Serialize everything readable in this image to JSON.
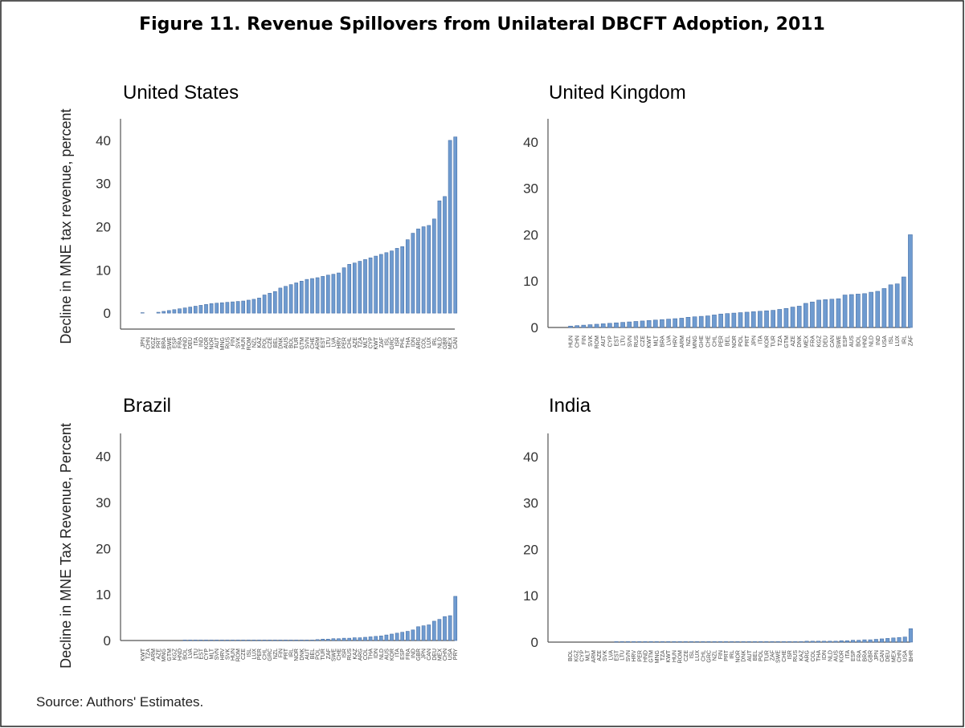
{
  "title": "Figure 11. Revenue Spillovers from Unilateral DBCFT Adoption, 2011",
  "source": "Source: Authors' Estimates.",
  "chart_data": [
    {
      "type": "bar",
      "title": "United States",
      "y_label": "Decline in MNE tax revenue, percent",
      "color": "#6f9bd0",
      "categories": [
        "JPN",
        "CHN",
        "KGZ",
        "PRT",
        "BRA",
        "SWE",
        "ESP",
        "FRA",
        "HND",
        "DEU",
        "ITA",
        "IND",
        "KOR",
        "NOR",
        "AUT",
        "MNG",
        "RUS",
        "FIN",
        "SVK",
        "HUN",
        "ROM",
        "NZL",
        "KAZ",
        "POL",
        "CZE",
        "BEL",
        "DNK",
        "AUS",
        "BOL",
        "TUR",
        "GTM",
        "SVN",
        "CHE",
        "ARM",
        "EST",
        "LTU",
        "LVA",
        "HRV",
        "PER",
        "CHL",
        "AZE",
        "TZA",
        "MLT",
        "CYP",
        "KWT",
        "ZAF",
        "ISL",
        "GRC",
        "ISR",
        "PHL",
        "THA",
        "IDN",
        "ARG",
        "COL",
        "LUX",
        "IRL",
        "NLD",
        "GBR",
        "MEX",
        "CAN"
      ],
      "values": [
        0.1,
        0,
        0,
        0.2,
        0.4,
        0.6,
        0.8,
        1.0,
        1.2,
        1.4,
        1.6,
        1.8,
        2.0,
        2.2,
        2.3,
        2.4,
        2.5,
        2.6,
        2.7,
        2.8,
        3.0,
        3.2,
        3.5,
        4.2,
        4.6,
        5.0,
        5.8,
        6.2,
        6.6,
        7.0,
        7.4,
        7.8,
        8.0,
        8.2,
        8.5,
        8.8,
        9.0,
        9.3,
        10.5,
        11.3,
        11.6,
        12.0,
        12.4,
        12.8,
        13.2,
        13.6,
        14.0,
        14.4,
        15.0,
        15.4,
        17.0,
        18.5,
        19.5,
        20.0,
        20.3,
        21.8,
        26.0,
        27.0,
        40.0,
        40.8
      ],
      "ylim": [
        -3.7,
        45
      ],
      "yticks": [
        0,
        10,
        20,
        30,
        40
      ]
    },
    {
      "type": "bar",
      "title": "United Kingdom",
      "color": "#6f9bd0",
      "categories": [
        "HUN",
        "CHN",
        "FIN",
        "SVK",
        "ROM",
        "AUT",
        "CYP",
        "EST",
        "LTU",
        "SVN",
        "RUS",
        "CZE",
        "KWT",
        "MLT",
        "BRA",
        "LVA",
        "HRV",
        "ARM",
        "NZL",
        "MNG",
        "GHE",
        "CHE",
        "CHL",
        "PER",
        "BEL",
        "NOR",
        "POL",
        "PRT",
        "JPN",
        "ITA",
        "KOR",
        "TUR",
        "TZA",
        "GTM",
        "AZE",
        "DNK",
        "MEX",
        "FRA",
        "KGZ",
        "DEU",
        "CAN",
        "SWE",
        "ESP",
        "AUS",
        "BOL",
        "HND",
        "NLD",
        "IND",
        "USA",
        "ISL",
        "LUX",
        "IRL",
        "ZAF"
      ],
      "values": [
        0.3,
        0.4,
        0.5,
        0.6,
        0.7,
        0.8,
        0.9,
        1.0,
        1.1,
        1.2,
        1.3,
        1.4,
        1.5,
        1.6,
        1.7,
        1.8,
        1.9,
        2.0,
        2.2,
        2.3,
        2.4,
        2.5,
        2.7,
        2.9,
        3.0,
        3.1,
        3.2,
        3.3,
        3.4,
        3.5,
        3.6,
        3.7,
        3.9,
        4.1,
        4.4,
        4.6,
        5.2,
        5.5,
        5.9,
        6.0,
        6.1,
        6.2,
        7.0,
        7.1,
        7.2,
        7.3,
        7.6,
        7.8,
        8.4,
        9.2,
        9.4,
        10.9,
        20.0
      ],
      "ylim": [
        0,
        45
      ],
      "yticks": [
        0,
        10,
        20,
        30,
        40
      ]
    },
    {
      "type": "bar",
      "title": "Brazil",
      "y_label": "Decline in MNE Tax Revenue, Percent",
      "color": "#6f9bd0",
      "categories": [
        "KWT",
        "TZA",
        "ARM",
        "AZE",
        "MNG",
        "GTM",
        "KGZ",
        "HND",
        "BOL",
        "LVA",
        "LTU",
        "EST",
        "CYP",
        "MLT",
        "SVN",
        "HRV",
        "SVK",
        "HUN",
        "ROM",
        "CZE",
        "ISL",
        "LUX",
        "PER",
        "CHL",
        "GRC",
        "NZL",
        "FIN",
        "PRT",
        "IRL",
        "NOR",
        "DNK",
        "AUT",
        "BEL",
        "POL",
        "TUR",
        "ZAF",
        "SWE",
        "CHE",
        "ISR",
        "RUS",
        "KAZ",
        "ARG",
        "COL",
        "THA",
        "IDN",
        "NLD",
        "AUS",
        "KOR",
        "ITA",
        "ESP",
        "FRA",
        "IND",
        "GBR",
        "JPN",
        "CAN",
        "DEU",
        "MEX",
        "CHN",
        "USA",
        "PRY"
      ],
      "values": [
        0,
        0,
        0,
        0,
        0,
        0,
        0,
        0,
        0.1,
        0.1,
        0.1,
        0.1,
        0.1,
        0.1,
        0.1,
        0.1,
        0.1,
        0.1,
        0.1,
        0.1,
        0.1,
        0.1,
        0.1,
        0.1,
        0.1,
        0.1,
        0.1,
        0.1,
        0.1,
        0.1,
        0.1,
        0.1,
        0.1,
        0.2,
        0.3,
        0.3,
        0.4,
        0.4,
        0.5,
        0.5,
        0.6,
        0.6,
        0.7,
        0.8,
        0.9,
        1.0,
        1.2,
        1.4,
        1.6,
        1.8,
        2.0,
        2.3,
        3.0,
        3.2,
        3.4,
        4.2,
        4.6,
        5.2,
        5.4,
        9.6
      ],
      "ylim": [
        0,
        45
      ],
      "yticks": [
        0,
        10,
        20,
        30,
        40
      ]
    },
    {
      "type": "bar",
      "title": "India",
      "color": "#6f9bd0",
      "categories": [
        "BOL",
        "KGZ",
        "CYP",
        "MLT",
        "ARM",
        "AZE",
        "SVK",
        "LVA",
        "EST",
        "LTU",
        "SVN",
        "HRV",
        "PER",
        "HND",
        "GTM",
        "MNG",
        "TZA",
        "KWT",
        "HUN",
        "ROM",
        "CZE",
        "ISL",
        "LUX",
        "CHL",
        "GRC",
        "NZL",
        "FIN",
        "PRT",
        "IRL",
        "NOR",
        "DNK",
        "AUT",
        "BEL",
        "POL",
        "TUR",
        "ZAF",
        "SWE",
        "CHE",
        "ISR",
        "RUS",
        "KAZ",
        "ARG",
        "COL",
        "THA",
        "IDN",
        "NLD",
        "AUS",
        "KOR",
        "ITA",
        "ESP",
        "FRA",
        "BRA",
        "GBR",
        "JPN",
        "CAN",
        "DEU",
        "MEX",
        "CHN",
        "USA",
        "BHR"
      ],
      "values": [
        0,
        0,
        0,
        0,
        0,
        0,
        0,
        0,
        0.1,
        0.1,
        0.1,
        0.1,
        0.1,
        0.1,
        0.1,
        0.1,
        0.1,
        0.1,
        0.1,
        0.1,
        0.1,
        0.1,
        0.1,
        0.1,
        0.1,
        0.1,
        0.1,
        0.1,
        0.1,
        0.1,
        0.1,
        0.1,
        0.1,
        0.1,
        0.1,
        0.1,
        0.1,
        0.1,
        0.1,
        0.1,
        0.1,
        0.2,
        0.2,
        0.2,
        0.2,
        0.2,
        0.2,
        0.3,
        0.3,
        0.4,
        0.4,
        0.5,
        0.5,
        0.6,
        0.7,
        0.8,
        0.9,
        1.0,
        1.1,
        2.9
      ],
      "ylim": [
        0,
        45
      ],
      "yticks": [
        0,
        10,
        20,
        30,
        40
      ]
    }
  ]
}
